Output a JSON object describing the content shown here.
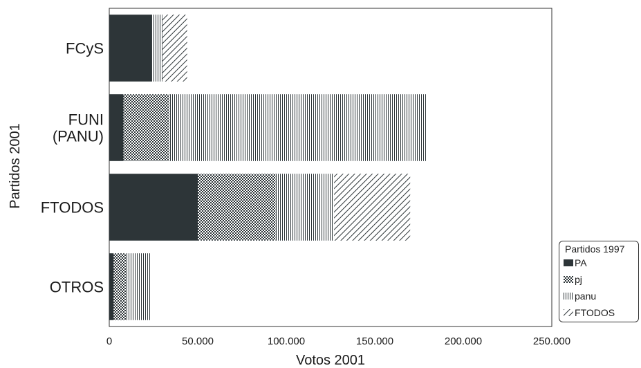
{
  "chart_data": {
    "type": "bar",
    "orientation": "horizontal",
    "stacked": true,
    "categories": [
      "FCyS",
      "FUNI\n(PANU)",
      "FTODOS",
      "OTROS"
    ],
    "series": [
      {
        "name": "PA",
        "values": [
          24000,
          8000,
          50000,
          2500
        ],
        "pattern": "solid",
        "color": "#2d3538"
      },
      {
        "name": "pj",
        "values": [
          0,
          26000,
          44000,
          7000
        ],
        "pattern": "checker",
        "color": "#2d3538"
      },
      {
        "name": "panu",
        "values": [
          6000,
          145000,
          33000,
          14000
        ],
        "pattern": "vertical-lines",
        "color": "#2d3538"
      },
      {
        "name": "FTODOS",
        "values": [
          14000,
          0,
          43000,
          0
        ],
        "pattern": "diagonal-lines",
        "color": "#2d3538"
      }
    ],
    "xlabel": "Votos 2001",
    "ylabel": "Partidos 2001",
    "xlim": [
      0,
      250000
    ],
    "xticks": [
      0,
      50000,
      100000,
      150000,
      200000,
      250000
    ],
    "xtick_labels": [
      "0",
      "50.000",
      "100.000",
      "150.000",
      "200.000",
      "250.000"
    ],
    "legend_title": "Partidos 1997",
    "legend_position": "bottom-right-outside",
    "grid": false
  }
}
